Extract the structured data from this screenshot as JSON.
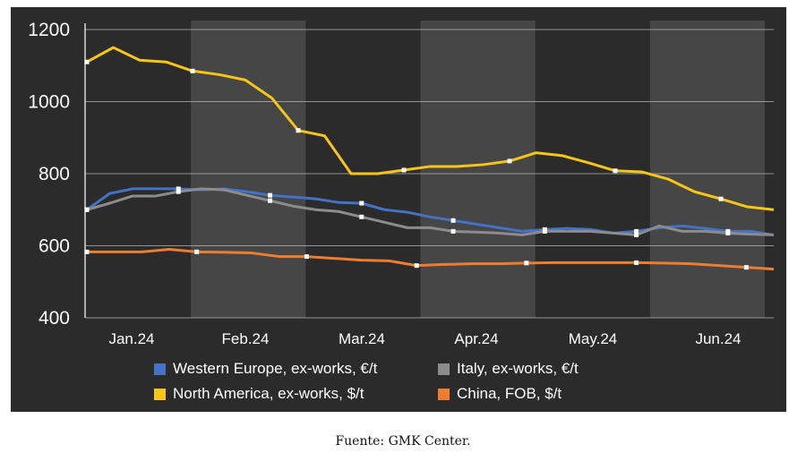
{
  "chart_data": {
    "type": "line",
    "ylim": [
      400,
      1200
    ],
    "yticks": [
      400,
      600,
      800,
      1000,
      1200
    ],
    "grid": true,
    "legend": "bottom",
    "months": [
      "Jan.24",
      "Feb.24",
      "Mar.24",
      "Apr.24",
      "May.24",
      "Jun.24"
    ],
    "series": [
      {
        "name": "Western Europe, ex-works, €/t",
        "color": "#4472c4",
        "values": [
          700,
          745,
          758,
          758,
          758,
          755,
          758,
          750,
          740,
          735,
          730,
          720,
          718,
          700,
          693,
          680,
          670,
          660,
          650,
          640,
          645,
          648,
          645,
          635,
          640,
          650,
          655,
          648,
          640,
          640,
          630
        ]
      },
      {
        "name": "Italy, ex-works, €/t",
        "color": "#8c8c8c",
        "values": [
          700,
          718,
          738,
          738,
          750,
          758,
          755,
          740,
          725,
          710,
          700,
          695,
          680,
          665,
          650,
          650,
          640,
          638,
          635,
          630,
          640,
          640,
          640,
          635,
          630,
          655,
          640,
          640,
          635,
          632,
          630
        ]
      },
      {
        "name": "North America, ex-works, $/t",
        "color": "#f5c518",
        "values": [
          1110,
          1150,
          1115,
          1110,
          1085,
          1075,
          1060,
          1010,
          920,
          905,
          800,
          800,
          810,
          820,
          820,
          825,
          835,
          858,
          850,
          830,
          808,
          805,
          785,
          750,
          730,
          708,
          700
        ]
      },
      {
        "name": "China, FOB, $/t",
        "color": "#ed7d31",
        "values": [
          583,
          583,
          583,
          590,
          583,
          582,
          580,
          570,
          570,
          565,
          560,
          558,
          545,
          548,
          550,
          550,
          552,
          553,
          553,
          553,
          553,
          552,
          550,
          545,
          540,
          535
        ]
      }
    ]
  }
}
